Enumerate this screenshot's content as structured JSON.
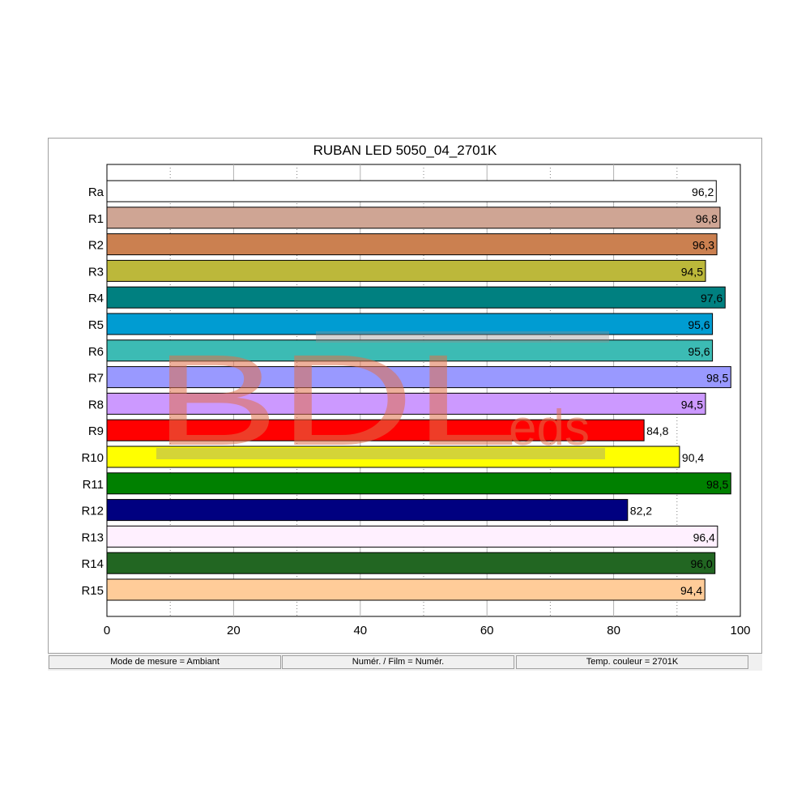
{
  "chart_data": {
    "type": "bar",
    "orientation": "horizontal",
    "title": "RUBAN LED 5050_04_2701K",
    "categories": [
      "Ra",
      "R1",
      "R2",
      "R3",
      "R4",
      "R5",
      "R6",
      "R7",
      "R8",
      "R9",
      "R10",
      "R11",
      "R12",
      "R13",
      "R14",
      "R15"
    ],
    "values": [
      96.2,
      96.8,
      96.3,
      94.5,
      97.6,
      95.6,
      95.6,
      98.5,
      94.5,
      84.8,
      90.4,
      98.5,
      82.2,
      96.4,
      96.0,
      94.4
    ],
    "value_labels": [
      "96,2",
      "96,8",
      "96,3",
      "94,5",
      "97,6",
      "95,6",
      "95,6",
      "98,5",
      "94,5",
      "84,8",
      "90,4",
      "98,5",
      "82,2",
      "96,4",
      "96,0",
      "94,4"
    ],
    "colors": [
      "#ffffff",
      "#cfa594",
      "#cb8050",
      "#bcb83a",
      "#008080",
      "#009cd2",
      "#3cbbb4",
      "#9999ff",
      "#cc99ff",
      "#ff0000",
      "#ffff00",
      "#008000",
      "#000080",
      "#fff0ff",
      "#226622",
      "#ffcc99"
    ],
    "xlim": [
      0,
      100
    ],
    "xticks": [
      0,
      20,
      40,
      60,
      80,
      100
    ],
    "tick_labels": [
      "0",
      "20",
      "40",
      "60",
      "80",
      "100"
    ],
    "grid": true,
    "xlabel": "",
    "ylabel": ""
  },
  "watermark": {
    "text_main": "BDL",
    "text_sub": "eds"
  },
  "status": {
    "mode": "Mode de mesure = Ambiant",
    "film": "Numér. / Film = Numér.",
    "temp": "Temp. couleur = 2701K"
  }
}
